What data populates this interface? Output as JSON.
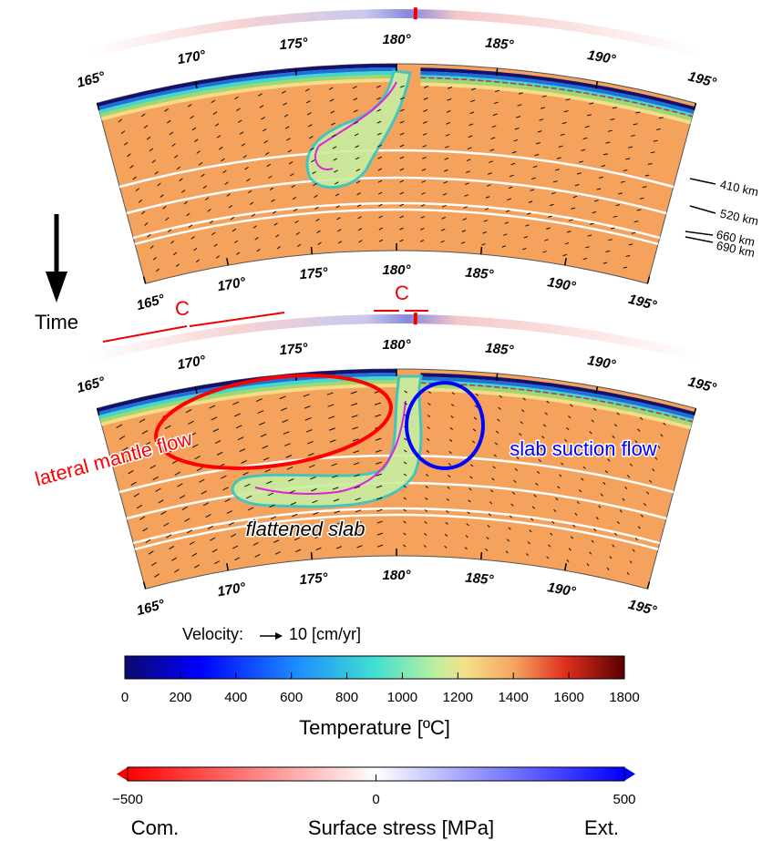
{
  "panels": [
    {
      "lon_labels_top": [
        "165°",
        "170°",
        "175°",
        "180°",
        "185°",
        "190°",
        "195°"
      ],
      "lon_labels_bottom": [
        "165°",
        "170°",
        "175°",
        "180°",
        "185°",
        "190°",
        "195°"
      ]
    },
    {
      "lon_labels_top": [
        "165°",
        "170°",
        "175°",
        "180°",
        "185°",
        "190°",
        "195°"
      ],
      "lon_labels_bottom": [
        "165°",
        "170°",
        "175°",
        "180°",
        "185°",
        "190°",
        "195°"
      ]
    }
  ],
  "depth_labels": [
    "410 km",
    "520 km",
    "660 km",
    "690 km"
  ],
  "time_label": "Time",
  "convergence_labels": [
    "C",
    "C"
  ],
  "annotations": {
    "lateral": "lateral mantle flow",
    "suction": "slab suction flow",
    "flattened": "flattened slab"
  },
  "velocity_legend": {
    "label": "Velocity:",
    "scale": "10 [cm/yr]"
  },
  "temperature_colorbar": {
    "title": "Temperature [ºC]",
    "range": [
      0,
      1800
    ],
    "ticks": [
      0,
      200,
      400,
      600,
      800,
      1000,
      1200,
      1400,
      1600,
      1800
    ]
  },
  "stress_colorbar": {
    "title": "Surface stress [MPa]",
    "range": [
      -500,
      500
    ],
    "ticks": [
      {
        "value": -500,
        "label": "−500"
      },
      0,
      500
    ],
    "left_label": "Com.",
    "right_label": "Ext."
  }
}
